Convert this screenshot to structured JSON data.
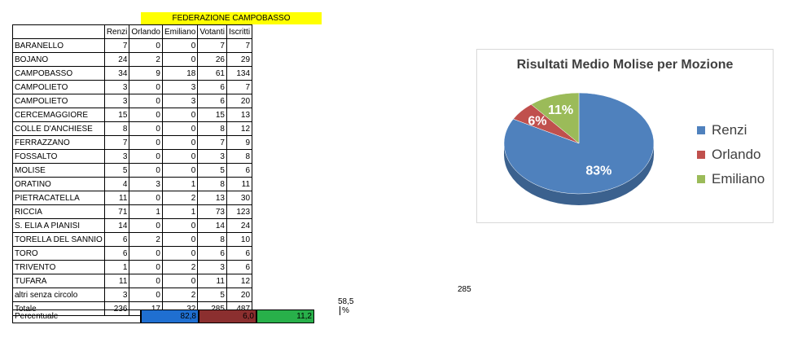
{
  "sheet": {
    "title": "FEDERAZIONE CAMPOBASSO",
    "headers": [
      "Renzi",
      "Orlando",
      "Emiliano",
      "Votanti",
      "Iscritti"
    ],
    "rows": [
      {
        "name": "BARANELLO",
        "renzi": "7",
        "orlando": "0",
        "emiliano": "0",
        "votanti": "7",
        "iscritti": "7"
      },
      {
        "name": "BOJANO",
        "renzi": "24",
        "orlando": "2",
        "emiliano": "0",
        "votanti": "26",
        "iscritti": "29"
      },
      {
        "name": "CAMPOBASSO",
        "renzi": "34",
        "orlando": "9",
        "emiliano": "18",
        "votanti": "61",
        "iscritti": "134"
      },
      {
        "name": "CAMPOLIETO",
        "renzi": "3",
        "orlando": "0",
        "emiliano": "3",
        "votanti": "6",
        "iscritti": "7"
      },
      {
        "name": "CAMPOLIETO",
        "renzi": "3",
        "orlando": "0",
        "emiliano": "3",
        "votanti": "6",
        "iscritti": "20"
      },
      {
        "name": "CERCEMAGGIORE",
        "renzi": "15",
        "orlando": "0",
        "emiliano": "0",
        "votanti": "15",
        "iscritti": "13"
      },
      {
        "name": "COLLE D'ANCHIESE",
        "renzi": "8",
        "orlando": "0",
        "emiliano": "0",
        "votanti": "8",
        "iscritti": "12"
      },
      {
        "name": "FERRAZZANO",
        "renzi": "7",
        "orlando": "0",
        "emiliano": "0",
        "votanti": "7",
        "iscritti": "9"
      },
      {
        "name": "FOSSALTO",
        "renzi": "3",
        "orlando": "0",
        "emiliano": "0",
        "votanti": "3",
        "iscritti": "8"
      },
      {
        "name": "MOLISE",
        "renzi": "5",
        "orlando": "0",
        "emiliano": "0",
        "votanti": "5",
        "iscritti": "6"
      },
      {
        "name": "ORATINO",
        "renzi": "4",
        "orlando": "3",
        "emiliano": "1",
        "votanti": "8",
        "iscritti": "11"
      },
      {
        "name": "PIETRACATELLA",
        "renzi": "11",
        "orlando": "0",
        "emiliano": "2",
        "votanti": "13",
        "iscritti": "30"
      },
      {
        "name": "RICCIA",
        "renzi": "71",
        "orlando": "1",
        "emiliano": "1",
        "votanti": "73",
        "iscritti": "123"
      },
      {
        "name": "S. ELIA A PIANISI",
        "renzi": "14",
        "orlando": "0",
        "emiliano": "0",
        "votanti": "14",
        "iscritti": "24"
      },
      {
        "name": "TORELLA DEL SANNIO",
        "renzi": "6",
        "orlando": "2",
        "emiliano": "0",
        "votanti": "8",
        "iscritti": "10"
      },
      {
        "name": "TORO",
        "renzi": "6",
        "orlando": "0",
        "emiliano": "0",
        "votanti": "6",
        "iscritti": "6"
      },
      {
        "name": "TRIVENTO",
        "renzi": "1",
        "orlando": "0",
        "emiliano": "2",
        "votanti": "3",
        "iscritti": "6"
      },
      {
        "name": "TUFARA",
        "renzi": "11",
        "orlando": "0",
        "emiliano": "0",
        "votanti": "11",
        "iscritti": "12"
      },
      {
        "name": "altri senza circolo",
        "renzi": "3",
        "orlando": "0",
        "emiliano": "2",
        "votanti": "5",
        "iscritti": "20"
      }
    ],
    "total": {
      "name": "Totale",
      "renzi": "236",
      "orlando": "17",
      "emiliano": "32",
      "votanti": "285",
      "iscritti": "487",
      "extra": "285"
    },
    "affluenza": {
      "value": "58,5",
      "unit": "%"
    },
    "percentuale": {
      "label": "Percentuale",
      "renzi": "82,8",
      "orlando": "6,0",
      "emiliano": "11,2"
    },
    "colors": {
      "title_bg": "#ffff00",
      "renzi": "#1f6fd1",
      "orlando": "#8b2f2f",
      "emiliano": "#28b04a"
    }
  },
  "chart_data": {
    "type": "pie",
    "title": "Risultati Medio Molise per Mozione",
    "categories": [
      "Renzi",
      "Orlando",
      "Emiliano"
    ],
    "values": [
      83,
      6,
      11
    ],
    "labels": [
      "83%",
      "6%",
      "11%"
    ],
    "colors": [
      "#4f81bd",
      "#c0504d",
      "#9bbb59"
    ],
    "legend": "right"
  }
}
